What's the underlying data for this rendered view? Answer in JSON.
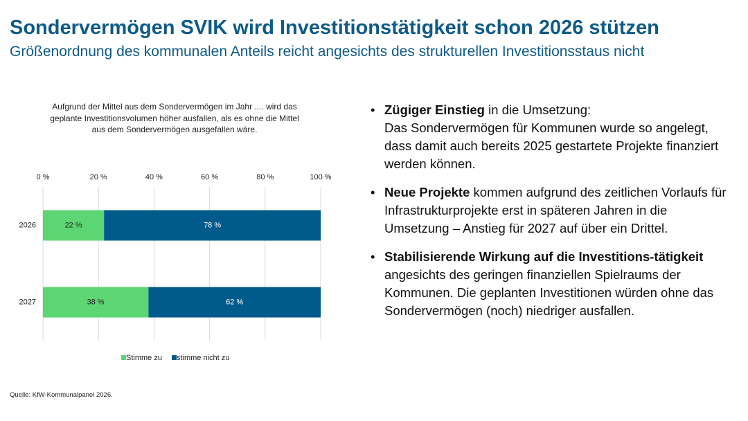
{
  "header": {
    "title": "Sondervermögen SVIK wird Investitionstätigkeit schon 2026 stützen",
    "subtitle": "Größenordnung des kommunalen Anteils reicht angesichts des strukturellen Investitionsstaus nicht"
  },
  "chart_data": {
    "type": "bar",
    "orientation": "horizontal",
    "stacked": true,
    "title": "Aufgrund der Mittel aus dem Sondervermögen im Jahr .... wird das geplante Investitionsvolumen höher ausfallen, als es ohne die Mittel aus dem Sondervermögen ausgefallen wäre.",
    "categories": [
      "2026",
      "2027"
    ],
    "series": [
      {
        "name": "Stimme zu",
        "color": "#5cd672",
        "label_color": "#222222",
        "values": [
          22,
          38
        ],
        "value_labels": [
          "22 %",
          "38 %"
        ]
      },
      {
        "name": "stimme nicht zu",
        "color": "#005a8c",
        "label_color": "#ffffff",
        "values": [
          78,
          62
        ],
        "value_labels": [
          "78 %",
          "62 %"
        ]
      }
    ],
    "xlim": [
      0,
      100
    ],
    "xticks": [
      {
        "value": 0,
        "label": "0 %"
      },
      {
        "value": 20,
        "label": "20 %"
      },
      {
        "value": 40,
        "label": "40 %"
      },
      {
        "value": 60,
        "label": "60 %"
      },
      {
        "value": 80,
        "label": "80 %"
      },
      {
        "value": 100,
        "label": "100 %"
      }
    ],
    "grid": true,
    "legend": "bottom"
  },
  "bullets": [
    {
      "bold": "Zügiger Einstieg",
      "text": "in die Umsetzung:",
      "text2": "Das Sondervermögen für Kommunen wurde so angelegt, dass damit auch bereits 2025 gestartete Projekte finanziert werden können."
    },
    {
      "bold": "Neue Projekte",
      "text": "kommen aufgrund des zeitlichen Vorlaufs für Infrastrukturprojekte erst in späteren Jahren in die Umsetzung – Anstieg für 2027 auf über ein Drittel."
    },
    {
      "bold": "Stabilisierende Wirkung auf die Investitions-tätigkeit",
      "text": "angesichts des geringen finanziellen Spielraums der Kommunen. Die geplanten Investitionen würden ohne das Sondervermögen (noch) niedriger ausfallen."
    }
  ],
  "source": "Quelle: KfW-Kommunalpanel 2026."
}
